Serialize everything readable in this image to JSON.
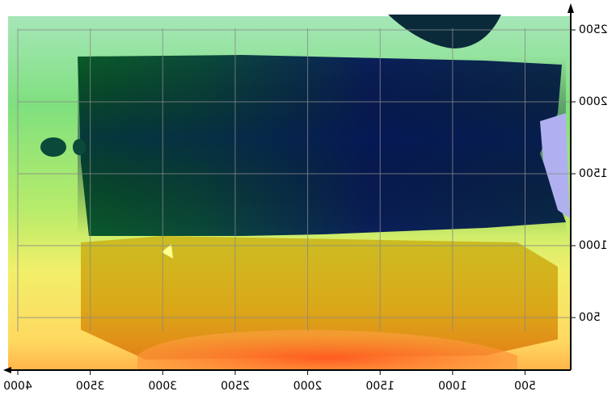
{
  "chart_data": {
    "type": "surface",
    "xlim": [
      4000,
      185
    ],
    "xticks": [
      4000,
      3500,
      3000,
      2500,
      2000,
      1500,
      1000,
      500
    ],
    "ylim": [
      135,
      2663
    ],
    "yticks": [
      500,
      1000,
      1500,
      2000,
      2500
    ],
    "grid": true,
    "mirrored": true
  }
}
